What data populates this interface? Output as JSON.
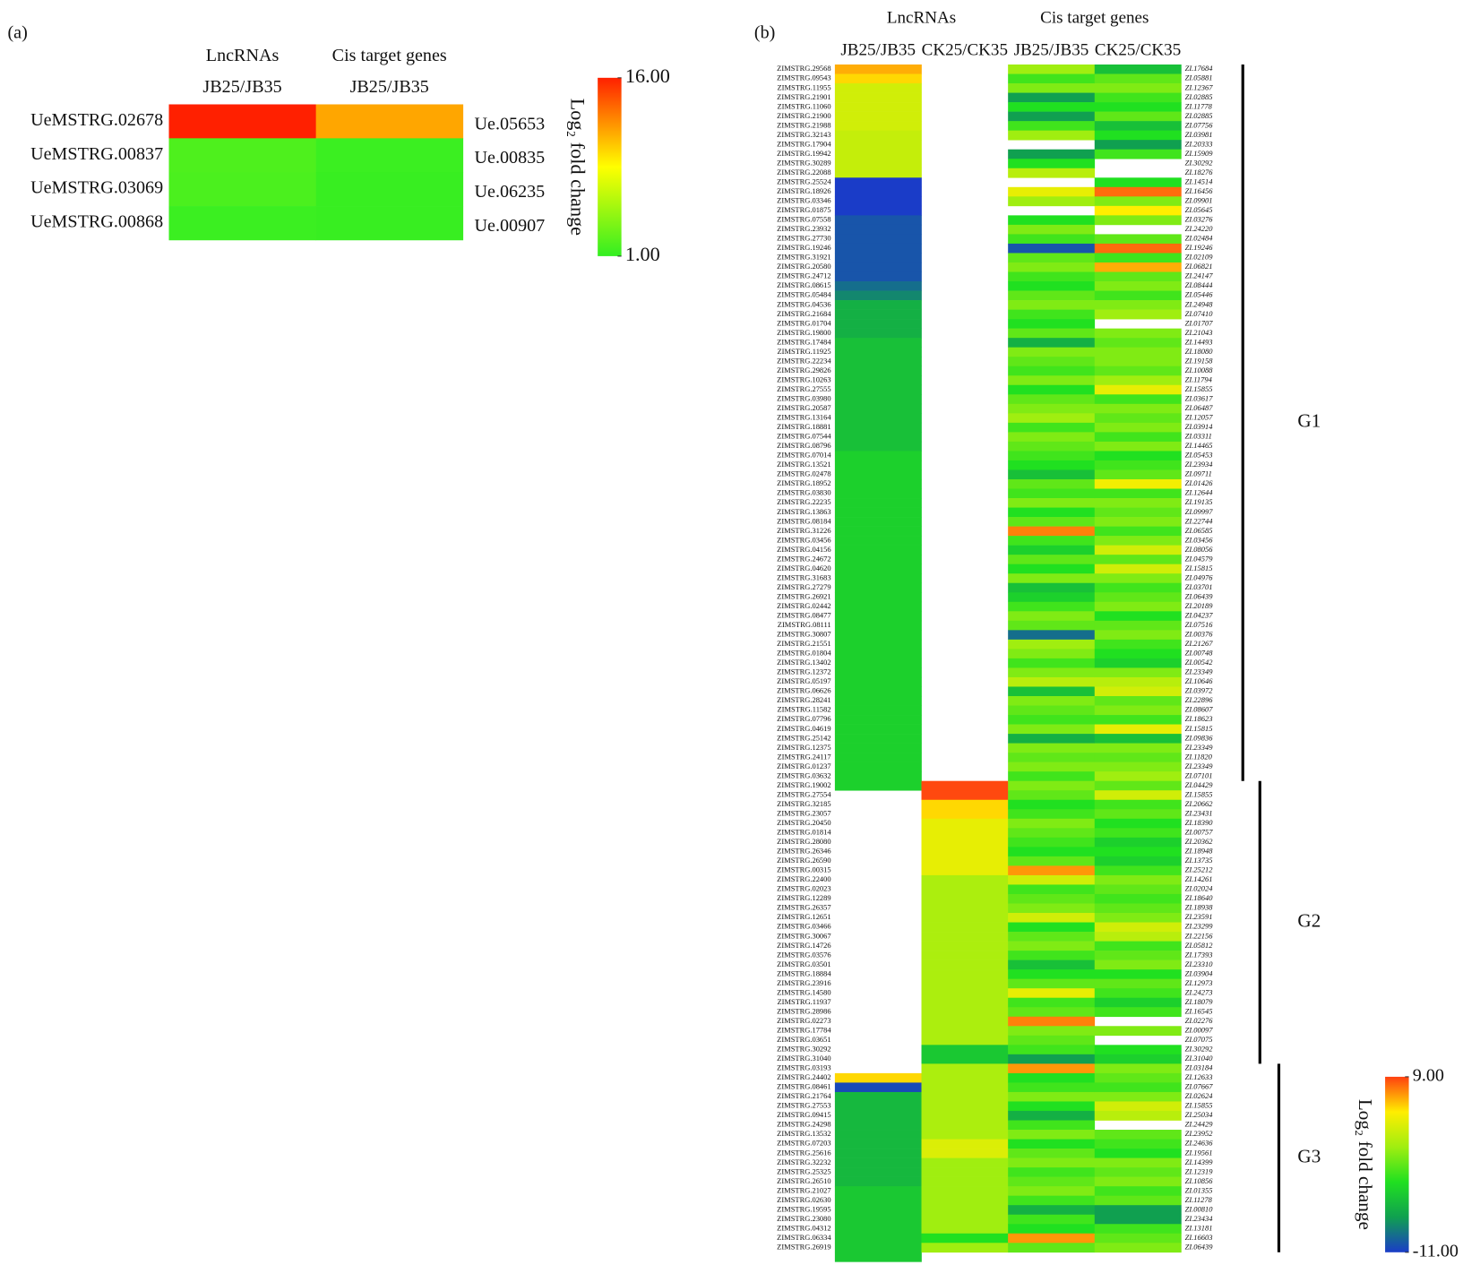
{
  "chart_data": [
    {
      "type": "heatmap",
      "panel": "(a)",
      "column_groups": [
        {
          "name": "LncRNAs",
          "columns": [
            {
              "name": "JB25/JB35",
              "values": [
                16,
                2,
                1.9,
                1.3
              ]
            }
          ]
        },
        {
          "name": "Cis target genes",
          "columns": [
            {
              "name": "JB25/JB35",
              "values": [
                11.5,
                1.3,
                1.2,
                1.2
              ]
            }
          ]
        }
      ],
      "row_labels": [
        "UeMSTRG.02678",
        "UeMSTRG.00837",
        "UeMSTRG.03069",
        "UeMSTRG.00868"
      ],
      "target_labels": [
        "Ue.05653",
        "Ue.00835",
        "Ue.06235",
        "Ue.00907"
      ],
      "colorbar": {
        "title": "Log₂ fold change",
        "lim": [
          1,
          16
        ],
        "colors": [
          "#33ee22",
          "#ffff00",
          "#ff2000"
        ],
        "ticks": [
          {
            "value": 16,
            "label": "16.00"
          },
          {
            "value": 1,
            "label": "1.00"
          }
        ]
      }
    },
    {
      "type": "heatmap",
      "panel": "(b)",
      "column_groups": [
        {
          "name": "LncRNAs",
          "columns": [
            {
              "name": "JB25/JB35",
              "values": [
                6.5,
                5.5,
                3,
                3,
                3,
                3,
                3,
                2.5,
                2.5,
                2.5,
                2.5,
                2.5,
                -11,
                -11,
                -11,
                -11,
                -10,
                -10,
                -10,
                -10,
                -10,
                -10,
                -10,
                -9,
                -8,
                -6,
                -6,
                -6,
                -6,
                -5,
                -5,
                -5,
                -5,
                -5,
                -5,
                -5,
                -5,
                -5,
                -5,
                -5,
                -5,
                -4,
                -4,
                -4,
                -4,
                -4,
                -4,
                -4,
                -4,
                -4,
                -4,
                -4,
                -4,
                -4,
                -4,
                -4,
                -4,
                -4,
                -4,
                -4,
                -4,
                -4,
                -4,
                -4,
                -4,
                -4,
                -4,
                -4,
                -4,
                -4,
                -4,
                -4,
                -4,
                -4,
                -4,
                -4,
                -4,
                null,
                null,
                null,
                null,
                null,
                null,
                null,
                null,
                null,
                null,
                null,
                null,
                null,
                null,
                null,
                null,
                null,
                null,
                null,
                null,
                null,
                null,
                null,
                null,
                null,
                null,
                null,
                null,
                null,
                null,
                5.5,
                -10.5,
                -5.5,
                -5.5,
                -5.5,
                -5.5,
                -5.5,
                -5.5,
                -5.5,
                -5.5,
                -5.5,
                -5.5,
                -4.5,
                -4.5,
                -4.5,
                -4.5,
                -4.5,
                -4.5,
                -4.5,
                -4.5
              ]
            },
            {
              "name": "CK25/CK35",
              "values": [
                null,
                null,
                null,
                null,
                null,
                null,
                null,
                null,
                null,
                null,
                null,
                null,
                null,
                null,
                null,
                null,
                null,
                null,
                null,
                null,
                null,
                null,
                null,
                null,
                null,
                null,
                null,
                null,
                null,
                null,
                null,
                null,
                null,
                null,
                null,
                null,
                null,
                null,
                null,
                null,
                null,
                null,
                null,
                null,
                null,
                null,
                null,
                null,
                null,
                null,
                null,
                null,
                null,
                null,
                null,
                null,
                null,
                null,
                null,
                null,
                null,
                null,
                null,
                null,
                null,
                null,
                null,
                null,
                null,
                null,
                null,
                null,
                null,
                null,
                null,
                null,
                8.8,
                8.8,
                5.5,
                5.5,
                4,
                4,
                4,
                4,
                4,
                4,
                1.5,
                1.5,
                1.5,
                1.5,
                1.5,
                1.5,
                1.5,
                1.5,
                1.5,
                1.5,
                1.5,
                1.5,
                1.5,
                1.5,
                1.5,
                1.5,
                1.5,
                1.5,
                -4.5,
                -4.5,
                1.5,
                1.5,
                1.5,
                1.5,
                1.5,
                1.5,
                1.5,
                1.5,
                3.5,
                3.5,
                1,
                1,
                1,
                1,
                1,
                1,
                1,
                1,
                -3,
                1
              ]
            }
          ]
        },
        {
          "name": "Cis target genes",
          "columns": [
            {
              "name": "JB25/JB35",
              "values": [
                1,
                -2,
                0,
                -7,
                -3,
                -7,
                -2,
                1,
                null,
                -7,
                -3,
                2,
                null,
                4,
                1,
                null,
                -3,
                0,
                -2,
                -10,
                -1,
                0,
                -2,
                -3,
                -1,
                0,
                -2,
                -3,
                -1,
                -6,
                0,
                -1,
                -2,
                0,
                -3,
                -1,
                0,
                1,
                -2,
                0,
                -1,
                -2,
                -3,
                -5,
                -1,
                -2,
                0,
                -3,
                -1,
                7.5,
                -2,
                -4,
                -1,
                -3,
                0,
                -5,
                -4,
                -2,
                0,
                -1,
                -9,
                1,
                0,
                -2,
                0,
                2,
                -5,
                0,
                -1,
                -2,
                0,
                -6,
                0,
                -1,
                0,
                -2,
                0,
                -1,
                -3,
                -2,
                0,
                -1,
                -2,
                -3,
                -1,
                7,
                3,
                -2,
                -1,
                0,
                3,
                -3,
                -1,
                0,
                -2,
                -5,
                -3,
                -1,
                4,
                -2,
                -1,
                7.5,
                0,
                -1,
                -2,
                -7,
                7,
                -3,
                -2,
                0,
                -3,
                -6,
                -2,
                0,
                -3,
                -1,
                0,
                -2,
                -1,
                0,
                -2,
                -6,
                -2,
                -3,
                7,
                -1
              ]
            },
            {
              "name": "CK25/CK35",
              "values": [
                -5,
                -1,
                0,
                -2,
                -3,
                -1,
                -5,
                -3,
                -7,
                -2,
                null,
                null,
                -3,
                8,
                0,
                5,
                0,
                null,
                -1,
                8,
                -2,
                6.5,
                -1,
                0,
                -2,
                0,
                1,
                null,
                0,
                -1,
                0,
                0,
                -1,
                1,
                4,
                -2,
                0,
                -1,
                0,
                -2,
                0,
                -3,
                -2,
                -1,
                4.5,
                -2,
                0,
                -1,
                0,
                -2,
                0,
                3,
                -1,
                3,
                0,
                -2,
                -1,
                0,
                -3,
                -1,
                0,
                -2,
                -3,
                -4,
                0,
                2,
                3,
                -1,
                0,
                -2,
                4,
                -5,
                0,
                -1,
                0,
                1,
                -1,
                3,
                -2,
                -1,
                -3,
                -2,
                -4,
                -3,
                -4,
                -2,
                0,
                -1,
                -2,
                -1,
                0,
                3,
                2,
                -2,
                -1,
                0,
                -3,
                -1,
                -2,
                -4,
                -2,
                null,
                0,
                null,
                -3,
                -4,
                0,
                -1,
                -2,
                0,
                3,
                2,
                null,
                -1,
                -2,
                -3,
                0,
                -1,
                0,
                -2,
                -1,
                -7,
                -7,
                -2,
                -1,
                0
              ]
            }
          ]
        }
      ],
      "row_labels": [
        "ZIMSTRG.29568",
        "ZIMSTRG.09543",
        "ZIMSTRG.11955",
        "ZIMSTRG.21901",
        "ZIMSTRG.11060",
        "ZIMSTRG.21900",
        "ZIMSTRG.21988",
        "ZIMSTRG.32143",
        "ZIMSTRG.17904",
        "ZIMSTRG.19942",
        "ZIMSTRG.30289",
        "ZIMSTRG.22088",
        "ZIMSTRG.25524",
        "ZIMSTRG.18926",
        "ZIMSTRG.03346",
        "ZIMSTRG.01875",
        "ZIMSTRG.07558",
        "ZIMSTRG.23932",
        "ZIMSTRG.27730",
        "ZIMSTRG.19246",
        "ZIMSTRG.31921",
        "ZIMSTRG.20580",
        "ZIMSTRG.24712",
        "ZIMSTRG.08615",
        "ZIMSTRG.05484",
        "ZIMSTRG.04536",
        "ZIMSTRG.21684",
        "ZIMSTRG.01704",
        "ZIMSTRG.19800",
        "ZIMSTRG.17484",
        "ZIMSTRG.11925",
        "ZIMSTRG.22234",
        "ZIMSTRG.29826",
        "ZIMSTRG.10263",
        "ZIMSTRG.27555",
        "ZIMSTRG.03980",
        "ZIMSTRG.20587",
        "ZIMSTRG.13164",
        "ZIMSTRG.18881",
        "ZIMSTRG.07544",
        "ZIMSTRG.08796",
        "ZIMSTRG.07014",
        "ZIMSTRG.13521",
        "ZIMSTRG.02478",
        "ZIMSTRG.18952",
        "ZIMSTRG.03830",
        "ZIMSTRG.22235",
        "ZIMSTRG.13863",
        "ZIMSTRG.08184",
        "ZIMSTRG.31226",
        "ZIMSTRG.03456",
        "ZIMSTRG.04156",
        "ZIMSTRG.24672",
        "ZIMSTRG.04620",
        "ZIMSTRG.31683",
        "ZIMSTRG.27279",
        "ZIMSTRG.26921",
        "ZIMSTRG.02442",
        "ZIMSTRG.08477",
        "ZIMSTRG.08111",
        "ZIMSTRG.30807",
        "ZIMSTRG.21551",
        "ZIMSTRG.01804",
        "ZIMSTRG.13402",
        "ZIMSTRG.12372",
        "ZIMSTRG.05197",
        "ZIMSTRG.06626",
        "ZIMSTRG.28241",
        "ZIMSTRG.11582",
        "ZIMSTRG.07796",
        "ZIMSTRG.04619",
        "ZIMSTRG.25142",
        "ZIMSTRG.12375",
        "ZIMSTRG.24117",
        "ZIMSTRG.01237",
        "ZIMSTRG.03632",
        "ZIMSTRG.19002",
        "ZIMSTRG.27554",
        "ZIMSTRG.32185",
        "ZIMSTRG.23057",
        "ZIMSTRG.20450",
        "ZIMSTRG.01814",
        "ZIMSTRG.28080",
        "ZIMSTRG.26346",
        "ZIMSTRG.26590",
        "ZIMSTRG.00315",
        "ZIMSTRG.22400",
        "ZIMSTRG.02023",
        "ZIMSTRG.12289",
        "ZIMSTRG.26357",
        "ZIMSTRG.12651",
        "ZIMSTRG.03466",
        "ZIMSTRG.30067",
        "ZIMSTRG.14726",
        "ZIMSTRG.03576",
        "ZIMSTRG.03501",
        "ZIMSTRG.18884",
        "ZIMSTRG.23916",
        "ZIMSTRG.14580",
        "ZIMSTRG.11937",
        "ZIMSTRG.28986",
        "ZIMSTRG.02273",
        "ZIMSTRG.17784",
        "ZIMSTRG.03651",
        "ZIMSTRG.30292",
        "ZIMSTRG.31040",
        "ZIMSTRG.03193",
        "ZIMSTRG.24402",
        "ZIMSTRG.08461",
        "ZIMSTRG.21764",
        "ZIMSTRG.27553",
        "ZIMSTRG.09415",
        "ZIMSTRG.24298",
        "ZIMSTRG.13532",
        "ZIMSTRG.07203",
        "ZIMSTRG.25616",
        "ZIMSTRG.32232",
        "ZIMSTRG.25325",
        "ZIMSTRG.26510",
        "ZIMSTRG.21027",
        "ZIMSTRG.02630",
        "ZIMSTRG.19595",
        "ZIMSTRG.23080",
        "ZIMSTRG.04312",
        "ZIMSTRG.06334",
        "ZIMSTRG.26919"
      ],
      "target_labels": [
        "ZI.17684",
        "ZI.05881",
        "ZI.12367",
        "ZI.02885",
        "ZI.11778",
        "ZI.02885",
        "ZI.07756",
        "ZI.03981",
        "ZI.20333",
        "ZI.15909",
        "ZI.30292",
        "ZI.18276",
        "ZI.14514",
        "ZI.16456",
        "ZI.09901",
        "ZI.05645",
        "ZI.03276",
        "ZI.24220",
        "ZI.02484",
        "ZI.19246",
        "ZI.02109",
        "ZI.06821",
        "ZI.24147",
        "ZI.08444",
        "ZI.05446",
        "ZI.24948",
        "ZI.07410",
        "ZI.01707",
        "ZI.21043",
        "ZI.14493",
        "ZI.18080",
        "ZI.19158",
        "ZI.10088",
        "ZI.11794",
        "ZI.15855",
        "ZI.03617",
        "ZI.06487",
        "ZI.12057",
        "ZI.03914",
        "ZI.03311",
        "ZI.14465",
        "ZI.05453",
        "ZI.23934",
        "ZI.09711",
        "ZI.01426",
        "ZI.12644",
        "ZI.19135",
        "ZI.09997",
        "ZI.22744",
        "ZI.06585",
        "ZI.03456",
        "ZI.08056",
        "ZI.04579",
        "ZI.15815",
        "ZI.04976",
        "ZI.03701",
        "ZI.06439",
        "ZI.20189",
        "ZI.04237",
        "ZI.07516",
        "ZI.00376",
        "ZI.21267",
        "ZI.00748",
        "ZI.00542",
        "ZI.23349",
        "ZI.10646",
        "ZI.03972",
        "ZI.22896",
        "ZI.08607",
        "ZI.18623",
        "ZI.15815",
        "ZI.09836",
        "ZI.23349",
        "ZI.11820",
        "ZI.23349",
        "ZI.07101",
        "ZI.04429",
        "ZI.15855",
        "ZI.20662",
        "ZI.23431",
        "ZI.18390",
        "ZI.00757",
        "ZI.20362",
        "ZI.18948",
        "ZI.13735",
        "ZI.25212",
        "ZI.14261",
        "ZI.02024",
        "ZI.18640",
        "ZI.18938",
        "ZI.23591",
        "ZI.23299",
        "ZI.22156",
        "ZI.05812",
        "ZI.17393",
        "ZI.23310",
        "ZI.03904",
        "ZI.12973",
        "ZI.24273",
        "ZI.18079",
        "ZI.16545",
        "ZI.02276",
        "ZI.00097",
        "ZI.07075",
        "ZI.30292",
        "ZI.31040",
        "ZI.03184",
        "ZI.12633",
        "ZI.07667",
        "ZI.02624",
        "ZI.15855",
        "ZI.25034",
        "ZI.24429",
        "ZI.23952",
        "ZI.24636",
        "ZI.19561",
        "ZI.14399",
        "ZI.12319",
        "ZI.10856",
        "ZI.01355",
        "ZI.11278",
        "ZI.00810",
        "ZI.23434",
        "ZI.13181",
        "ZI.16603",
        "ZI.06439"
      ],
      "groups": [
        {
          "name": "G1",
          "first": "ZIMSTRG.29568",
          "last": "ZIMSTRG.03632"
        },
        {
          "name": "G2",
          "first": "ZIMSTRG.19002",
          "last": "ZIMSTRG.31040"
        },
        {
          "name": "G3",
          "first": "ZIMSTRG.03193",
          "last": "ZIMSTRG.26919"
        }
      ],
      "colorbar": {
        "title": "Log₂ fold change",
        "lim": [
          -11,
          9
        ],
        "colors": [
          "#1a3cc8",
          "#10a050",
          "#20e020",
          "#a0ee10",
          "#ffee00",
          "#ff4010"
        ],
        "ticks": [
          {
            "value": 9,
            "label": "9.00"
          },
          {
            "value": -11,
            "label": "-11.00"
          }
        ]
      }
    }
  ]
}
